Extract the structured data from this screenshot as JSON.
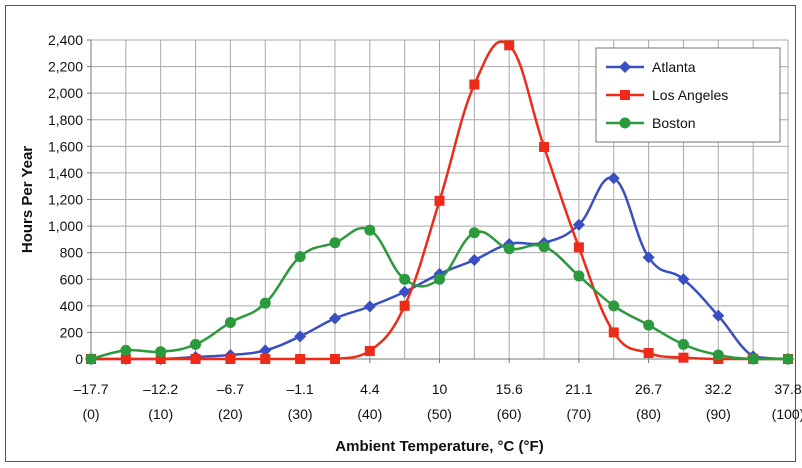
{
  "chart_data": {
    "type": "line",
    "xlabel": "Ambient Temperature, °C (°F)",
    "ylabel": "Hours Per Year",
    "ylim": [
      0,
      2400
    ],
    "yticks": [
      "0",
      "200",
      "400",
      "600",
      "800",
      "1,000",
      "1,200",
      "1,400",
      "1,600",
      "1,800",
      "2,000",
      "2,200",
      "2,400"
    ],
    "x_tick_labels_c": [
      "–17.7",
      "–12.2",
      "–6.7",
      "–1.1",
      "4.4",
      "10",
      "15.6",
      "21.1",
      "26.7",
      "32.2",
      "37.8"
    ],
    "x_tick_labels_f": [
      "(0)",
      "(10)",
      "(20)",
      "(30)",
      "(40)",
      "(50)",
      "(60)",
      "(70)",
      "(80)",
      "(90)",
      "(100)"
    ],
    "x_unit": "°F",
    "xlim": [
      0,
      100
    ],
    "grid": true,
    "legend_position": "top-right",
    "series": [
      {
        "name": "Atlanta",
        "color": "#3b4fc4",
        "marker": "diamond",
        "x": [
          0,
          5,
          10,
          15,
          20,
          25,
          30,
          35,
          40,
          45,
          50,
          55,
          60,
          65,
          70,
          75,
          80,
          85,
          90,
          95,
          100
        ],
        "values": [
          0,
          0,
          0,
          15,
          30,
          65,
          170,
          305,
          395,
          505,
          640,
          745,
          865,
          875,
          1010,
          1360,
          765,
          600,
          325,
          20,
          0
        ]
      },
      {
        "name": "Los Angeles",
        "color": "#ee2b18",
        "marker": "square",
        "x": [
          0,
          5,
          10,
          15,
          20,
          25,
          30,
          35,
          40,
          45,
          50,
          55,
          60,
          65,
          70,
          75,
          80,
          85,
          90,
          95,
          100
        ],
        "values": [
          0,
          0,
          0,
          0,
          0,
          0,
          0,
          0,
          60,
          400,
          1190,
          2065,
          2360,
          1595,
          840,
          200,
          45,
          10,
          0,
          0,
          0
        ]
      },
      {
        "name": "Boston",
        "color": "#2a9a3c",
        "marker": "circle",
        "x": [
          0,
          5,
          10,
          15,
          20,
          25,
          30,
          35,
          40,
          45,
          50,
          55,
          60,
          65,
          70,
          75,
          80,
          85,
          90,
          95,
          100
        ],
        "values": [
          0,
          65,
          55,
          110,
          275,
          420,
          770,
          875,
          970,
          600,
          600,
          950,
          830,
          845,
          625,
          400,
          255,
          110,
          30,
          0,
          0
        ]
      }
    ]
  }
}
